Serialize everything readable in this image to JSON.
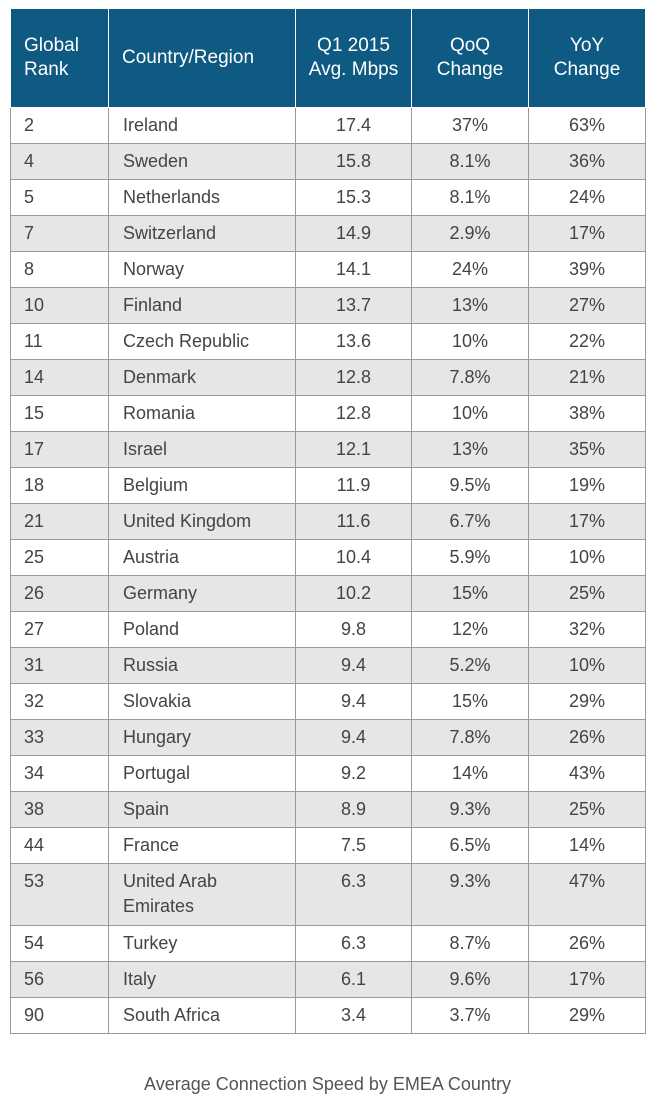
{
  "table": {
    "headers": {
      "rank": "Global Rank",
      "country": "Country/Region",
      "speed": "Q1 2015 Avg. Mbps",
      "qoq": "QoQ Change",
      "yoy": "YoY Change"
    },
    "rows": [
      {
        "rank": "2",
        "country": "Ireland",
        "speed": "17.4",
        "qoq": "37%",
        "yoy": "63%"
      },
      {
        "rank": "4",
        "country": "Sweden",
        "speed": "15.8",
        "qoq": "8.1%",
        "yoy": "36%"
      },
      {
        "rank": "5",
        "country": "Netherlands",
        "speed": "15.3",
        "qoq": "8.1%",
        "yoy": "24%"
      },
      {
        "rank": "7",
        "country": "Switzerland",
        "speed": "14.9",
        "qoq": "2.9%",
        "yoy": "17%"
      },
      {
        "rank": "8",
        "country": "Norway",
        "speed": "14.1",
        "qoq": "24%",
        "yoy": "39%"
      },
      {
        "rank": "10",
        "country": "Finland",
        "speed": "13.7",
        "qoq": "13%",
        "yoy": "27%"
      },
      {
        "rank": "11",
        "country": "Czech Republic",
        "speed": "13.6",
        "qoq": "10%",
        "yoy": "22%"
      },
      {
        "rank": "14",
        "country": "Denmark",
        "speed": "12.8",
        "qoq": "7.8%",
        "yoy": "21%"
      },
      {
        "rank": "15",
        "country": "Romania",
        "speed": "12.8",
        "qoq": "10%",
        "yoy": "38%"
      },
      {
        "rank": "17",
        "country": "Israel",
        "speed": "12.1",
        "qoq": "13%",
        "yoy": "35%"
      },
      {
        "rank": "18",
        "country": "Belgium",
        "speed": "11.9",
        "qoq": "9.5%",
        "yoy": "19%"
      },
      {
        "rank": "21",
        "country": "United Kingdom",
        "speed": "11.6",
        "qoq": "6.7%",
        "yoy": "17%"
      },
      {
        "rank": "25",
        "country": "Austria",
        "speed": "10.4",
        "qoq": "5.9%",
        "yoy": "10%"
      },
      {
        "rank": "26",
        "country": "Germany",
        "speed": "10.2",
        "qoq": "15%",
        "yoy": "25%"
      },
      {
        "rank": "27",
        "country": "Poland",
        "speed": "9.8",
        "qoq": "12%",
        "yoy": "32%"
      },
      {
        "rank": "31",
        "country": "Russia",
        "speed": "9.4",
        "qoq": "5.2%",
        "yoy": "10%"
      },
      {
        "rank": "32",
        "country": "Slovakia",
        "speed": "9.4",
        "qoq": "15%",
        "yoy": "29%"
      },
      {
        "rank": "33",
        "country": "Hungary",
        "speed": "9.4",
        "qoq": "7.8%",
        "yoy": "26%"
      },
      {
        "rank": "34",
        "country": "Portugal",
        "speed": "9.2",
        "qoq": "14%",
        "yoy": "43%"
      },
      {
        "rank": "38",
        "country": "Spain",
        "speed": "8.9",
        "qoq": "9.3%",
        "yoy": "25%"
      },
      {
        "rank": "44",
        "country": "France",
        "speed": "7.5",
        "qoq": "6.5%",
        "yoy": "14%"
      },
      {
        "rank": "53",
        "country": "United Arab Emirates",
        "speed": "6.3",
        "qoq": "9.3%",
        "yoy": "47%"
      },
      {
        "rank": "54",
        "country": "Turkey",
        "speed": "6.3",
        "qoq": "8.7%",
        "yoy": "26%"
      },
      {
        "rank": "56",
        "country": "Italy",
        "speed": "6.1",
        "qoq": "9.6%",
        "yoy": "17%"
      },
      {
        "rank": "90",
        "country": "South Africa",
        "speed": "3.4",
        "qoq": "3.7%",
        "yoy": "29%"
      }
    ]
  },
  "caption": "Average Connection Speed by EMEA Country",
  "colors": {
    "header_bg": "#0f5a82",
    "header_text": "#ffffff",
    "stripe": "#e6e6e6",
    "border": "#9a9a9a",
    "cell_text": "#444444"
  }
}
